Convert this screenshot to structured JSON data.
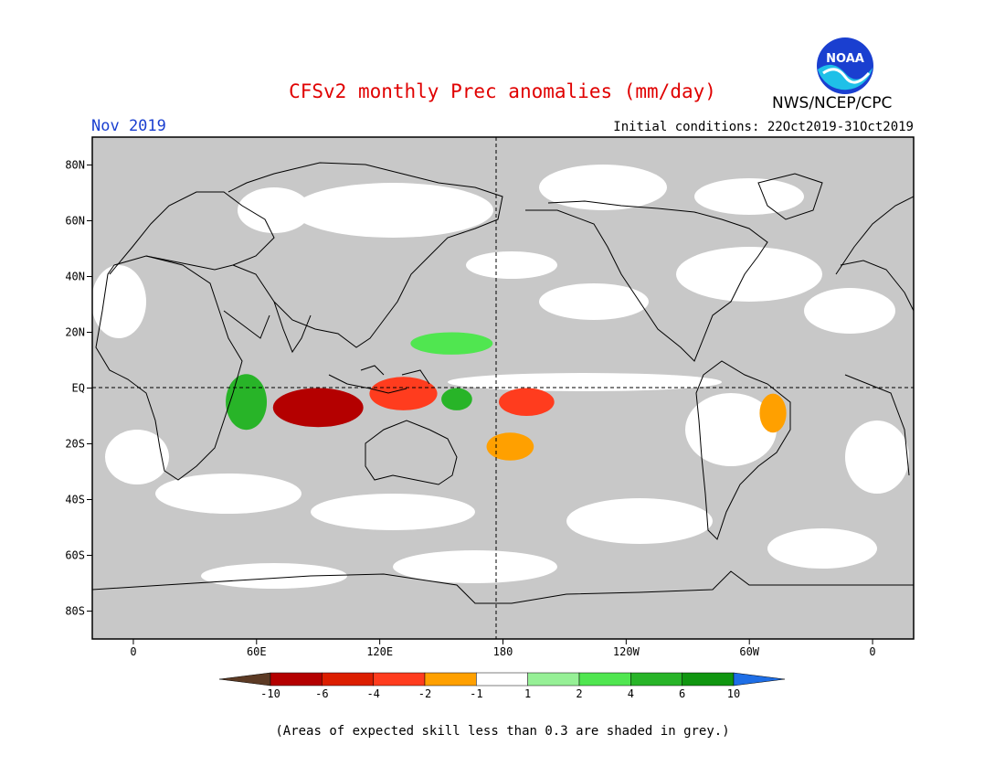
{
  "header": {
    "title": "CFSv2 monthly Prec anomalies (mm/day)",
    "month": "Nov 2019",
    "initial_conditions": "Initial conditions: 22Oct2019-31Oct2019",
    "organization": "NWS/NCEP/CPC",
    "logo_text": "NOAA"
  },
  "map": {
    "lat_labels": [
      "80N",
      "60N",
      "40N",
      "20N",
      "EQ",
      "20S",
      "40S",
      "60S",
      "80S"
    ],
    "lat_values": [
      80,
      60,
      40,
      20,
      0,
      -20,
      -40,
      -60,
      -80
    ],
    "lon_labels": [
      "0",
      "60E",
      "120E",
      "180",
      "120W",
      "60W",
      "0"
    ],
    "lon_values": [
      0,
      60,
      120,
      180,
      240,
      300,
      360
    ],
    "lon_range": [
      -20,
      380
    ],
    "lat_range": [
      -90,
      90
    ],
    "reference_lines": [
      "EQ",
      "180"
    ],
    "background_color": "#c8c8c8",
    "features": [
      {
        "name": "indian-ocean-dry-core",
        "color": "#5c3a24",
        "lon": [
          78,
          105
        ],
        "lat": [
          -8,
          -2
        ]
      },
      {
        "name": "eastern-indian-ocean-dry",
        "color": "#b40000",
        "lon": [
          68,
          112
        ],
        "lat": [
          -14,
          0
        ]
      },
      {
        "name": "maritime-continent-dry",
        "color": "#ff3c1e",
        "lon": [
          115,
          148
        ],
        "lat": [
          -8,
          4
        ]
      },
      {
        "name": "central-pacific-dry",
        "color": "#ff3c1e",
        "lon": [
          178,
          205
        ],
        "lat": [
          -10,
          0
        ]
      },
      {
        "name": "south-pacific-dry",
        "color": "#ffa000",
        "lon": [
          172,
          195
        ],
        "lat": [
          -26,
          -16
        ]
      },
      {
        "name": "amazon-dry",
        "color": "#ffa000",
        "lon": [
          305,
          318
        ],
        "lat": [
          -16,
          -2
        ]
      },
      {
        "name": "west-indian-ocean-wet",
        "color": "#28b428",
        "lon": [
          45,
          65
        ],
        "lat": [
          -15,
          5
        ]
      },
      {
        "name": "west-pacific-wet",
        "color": "#28b428",
        "lon": [
          150,
          165
        ],
        "lat": [
          -8,
          0
        ]
      },
      {
        "name": "north-pacific-wet",
        "color": "#50e650",
        "lon": [
          135,
          175
        ],
        "lat": [
          12,
          20
        ]
      }
    ]
  },
  "colorbar": {
    "labels": [
      "-10",
      "-6",
      "-4",
      "-2",
      "-1",
      "1",
      "2",
      "4",
      "6",
      "10"
    ],
    "colors": [
      "#5c3a24",
      "#b40000",
      "#dc1e00",
      "#ff3c1e",
      "#ffa000",
      "#ffffff",
      "#96f096",
      "#50e650",
      "#28b428",
      "#109610",
      "#1e6ee6"
    ]
  },
  "footnote": "(Areas of expected skill less than 0.3 are shaded in grey.)"
}
